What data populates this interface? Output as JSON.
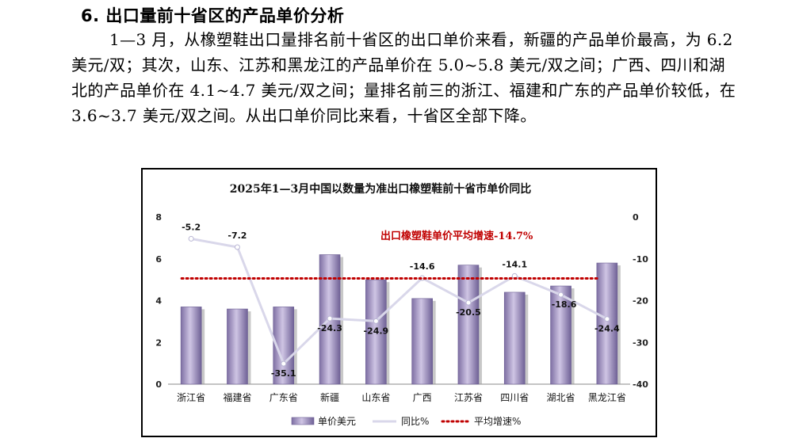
{
  "heading": "6. 出口量前十省区的产品单价分析",
  "paragraph": "1—3 月，从橡塑鞋出口量排名前十省区的出口单价来看，新疆的产品单价最高，为 6.2 美元/双；其次，山东、江苏和黑龙江的产品单价在 5.0~5.8 美元/双之间；广西、四川和湖北的产品单价在 4.1~4.7 美元/双之间；量排名前三的浙江、福建和广东的产品单价较低，在 3.6~3.7 美元/双之间。从出口单价同比来看，十省区全部下降。",
  "chart_data": {
    "type": "bar",
    "title": "2025年1—3月中国以数量为准出口橡塑鞋前十省市单价同比",
    "categories": [
      "浙江省",
      "福建省",
      "广东省",
      "新疆",
      "山东省",
      "广西",
      "江苏省",
      "四川省",
      "湖北省",
      "黑龙江省"
    ],
    "series": [
      {
        "name": "单价美元",
        "type": "bar",
        "axis": "left",
        "values": [
          3.7,
          3.6,
          3.7,
          6.2,
          5.0,
          4.1,
          5.7,
          4.4,
          4.7,
          5.8
        ],
        "color": "#a99bc6"
      },
      {
        "name": "同比%",
        "type": "line",
        "axis": "right",
        "values": [
          -5.2,
          -7.2,
          -35.1,
          -24.3,
          -24.9,
          -14.6,
          -20.5,
          -14.1,
          -18.6,
          -24.4
        ],
        "color": "#d9d7ea"
      },
      {
        "name": "平均增速%",
        "type": "line",
        "axis": "right",
        "values": [
          -14.7,
          -14.7,
          -14.7,
          -14.7,
          -14.7,
          -14.7,
          -14.7,
          -14.7,
          -14.7,
          -14.7
        ],
        "color": "#c00000"
      }
    ],
    "data_labels": [
      "-5.2",
      "-7.2",
      "-35.1",
      "-24.3",
      "-24.9",
      "-14.6",
      "-20.5",
      "-14.1",
      "-18.6",
      "-24.4"
    ],
    "y_left": {
      "ticks": [
        "0",
        "2",
        "4",
        "6",
        "8"
      ],
      "range": [
        0,
        8
      ]
    },
    "y_right": {
      "ticks": [
        "0",
        "-10",
        "-20",
        "-30",
        "-40"
      ],
      "range": [
        -40,
        0
      ]
    },
    "annotation": "出口橡塑鞋单价平均增速-14.7%",
    "legend": [
      "单价美元",
      "同比%",
      "平均增速%"
    ],
    "legend_position": "bottom"
  }
}
